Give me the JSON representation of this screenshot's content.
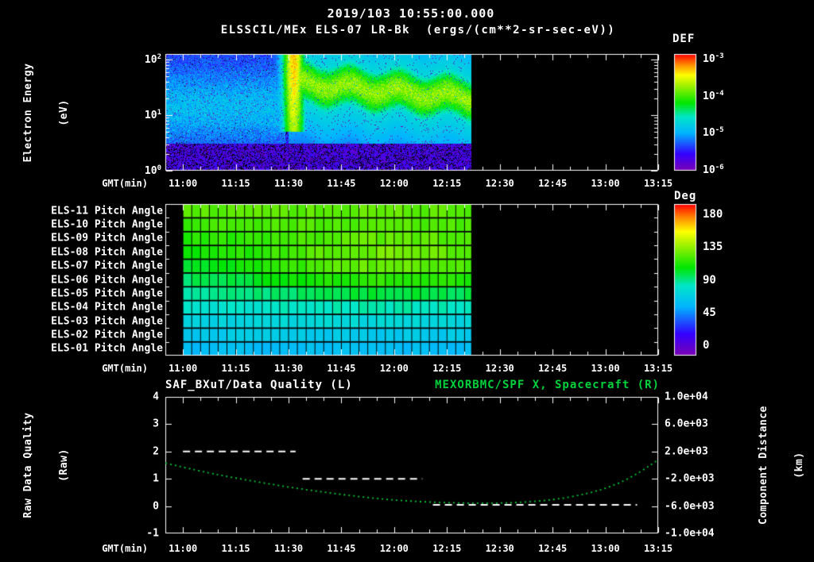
{
  "colors": {
    "background": "#000000",
    "foreground": "#ffffff",
    "accent_green": "#00d23c",
    "curve_green": "#00c838"
  },
  "colormap": [
    {
      "p": 0.0,
      "c": "#7a00b4"
    },
    {
      "p": 0.14,
      "c": "#3300ff"
    },
    {
      "p": 0.32,
      "c": "#00b4ff"
    },
    {
      "p": 0.46,
      "c": "#00e6c8"
    },
    {
      "p": 0.58,
      "c": "#00e600"
    },
    {
      "p": 0.72,
      "c": "#96f000"
    },
    {
      "p": 0.82,
      "c": "#ffff00"
    },
    {
      "p": 0.91,
      "c": "#ff8c00"
    },
    {
      "p": 1.0,
      "c": "#ff0000"
    }
  ],
  "header": {
    "title": "2019/103 10:55:00.000",
    "instrument": "ELSSCIL/MEx ELS-07 LR-Bk",
    "units": "(ergs/(cm**2-sr-sec-eV))"
  },
  "time_axis": {
    "label": "GMT(min)",
    "t_unit": "minutes since 00:00 GMT",
    "start_min": 655,
    "end_min": 795,
    "minor_tick_step_min": 5,
    "tick_minutes": [
      660,
      675,
      690,
      705,
      720,
      735,
      750,
      765,
      780,
      795
    ],
    "tick_labels": [
      "11:00",
      "11:15",
      "11:30",
      "11:45",
      "12:00",
      "12:15",
      "12:30",
      "12:45",
      "13:00",
      "13:15"
    ]
  },
  "spectrogram_panel": {
    "ylabel1": "Electron Energy",
    "ylabel2": "(eV)",
    "ytick_base": "10",
    "ytick_exponents": [
      2,
      1,
      0
    ],
    "colorbar": {
      "title": "DEF",
      "tick_base": "10",
      "tick_exponents": [
        -3,
        -4,
        -5,
        -6
      ]
    }
  },
  "pitch_panel": {
    "row_labels": [
      "ELS-11 Pitch Angle",
      "ELS-10 Pitch Angle",
      "ELS-09 Pitch Angle",
      "ELS-08 Pitch Angle",
      "ELS-07 Pitch Angle",
      "ELS-06 Pitch Angle",
      "ELS-05 Pitch Angle",
      "ELS-04 Pitch Angle",
      "ELS-03 Pitch Angle",
      "ELS-02 Pitch Angle",
      "ELS-01 Pitch Angle"
    ],
    "colorbar": {
      "title": "Deg",
      "ticks": [
        180,
        135,
        90,
        45,
        0
      ]
    }
  },
  "bottom_panel": {
    "title_left": "SAF_BXuT/Data Quality (L)",
    "title_right": "MEXORBMC/SPF X, Spacecraft (R)",
    "ylabel_left1": "Raw Data Quality",
    "ylabel_left2": "(Raw)",
    "ylabel_right1": "Component Distance",
    "ylabel_right2": "(km)",
    "left_ticks": [
      4,
      3,
      2,
      1,
      0,
      -1
    ],
    "right_tick_labels": [
      "1.0e+04",
      "6.0e+03",
      "2.0e+03",
      "-2.0e+03",
      "-6.0e+03",
      "-1.0e+04"
    ],
    "right_tick_values": [
      10000,
      6000,
      2000,
      -2000,
      -6000,
      -10000
    ]
  },
  "chart_data": [
    {
      "type": "heatmap",
      "id": "electron-energy-spectrogram",
      "title": "ELSSCIL/MEx ELS-07 LR-Bk",
      "units": "ergs/(cm**2-sr-sec-eV)",
      "xlabel": "GMT(min)",
      "ylabel": "Electron Energy (eV)",
      "y_scale": "log",
      "y_range_ev": [
        1,
        126
      ],
      "value_scale": "log10(DEF)",
      "value_range": [
        1e-06,
        0.001
      ],
      "data_start_min": 655,
      "data_end_min": 742,
      "features": {
        "background_log_def": -5.45,
        "low_energy_band": {
          "top_log_ev": 0.5,
          "log_def": -5.7,
          "black_speckle_fraction": 0.22
        },
        "pre_burst_band": {
          "center_log_ev": 1.15,
          "sigma": 0.5,
          "t_end_min": 689
        },
        "burst": {
          "t_center_min": 691.5,
          "t_sigma_min": 2.6,
          "peak_log_def": -3.4,
          "min_log_ev": 0.7
        },
        "post_band": {
          "t_start_min": 690,
          "center_log_ev_start": 1.6,
          "center_log_ev_end": 1.31,
          "sigma": 0.32,
          "peak_log_def": -3.85,
          "wiggle_amp": 0.08,
          "wiggle_period_min": 14
        }
      }
    },
    {
      "type": "heatmap",
      "id": "pitch-angle-panels",
      "rows_top_to_bottom": [
        "ELS-11",
        "ELS-10",
        "ELS-09",
        "ELS-08",
        "ELS-07",
        "ELS-06",
        "ELS-05",
        "ELS-04",
        "ELS-03",
        "ELS-02",
        "ELS-01"
      ],
      "units": "Deg",
      "value_range": [
        0,
        180
      ],
      "data_start_min": 660,
      "data_end_min": 742,
      "model": {
        "base_deg": 62,
        "per_row_deg": 5.6,
        "bump_deg": 26,
        "bump_row_center": 6,
        "bump_row_sigma": 2.5,
        "bump_t_center_min": 718,
        "bump_t_sigma_min": 45,
        "cell_min": 2.5,
        "noise_deg": 3
      }
    },
    {
      "type": "line",
      "id": "raw-data-quality",
      "label": "SAF_BXuT/Data Quality (L)",
      "axis": "left",
      "y_range": [
        -1,
        4
      ],
      "style": "dashed-white",
      "segments": [
        {
          "t": [
            660,
            692
          ],
          "value": 2
        },
        {
          "t": [
            694,
            728
          ],
          "value": 1
        },
        {
          "t": [
            731,
            789
          ],
          "value": 0.05
        }
      ]
    },
    {
      "type": "line",
      "id": "spacecraft-x-component-distance",
      "label": "MEXORBMC/SPF X, Spacecraft (R)",
      "axis": "right",
      "y_range": [
        -10000,
        10000
      ],
      "style": "dotted-green",
      "points_t_km": [
        [
          655,
          300
        ],
        [
          665,
          -900
        ],
        [
          675,
          -1900
        ],
        [
          685,
          -2800
        ],
        [
          695,
          -3600
        ],
        [
          705,
          -4300
        ],
        [
          715,
          -4900
        ],
        [
          725,
          -5300
        ],
        [
          735,
          -5500
        ],
        [
          745,
          -5600
        ],
        [
          755,
          -5500
        ],
        [
          765,
          -5100
        ],
        [
          775,
          -4200
        ],
        [
          783,
          -2900
        ],
        [
          790,
          -1000
        ],
        [
          795,
          800
        ]
      ]
    }
  ]
}
